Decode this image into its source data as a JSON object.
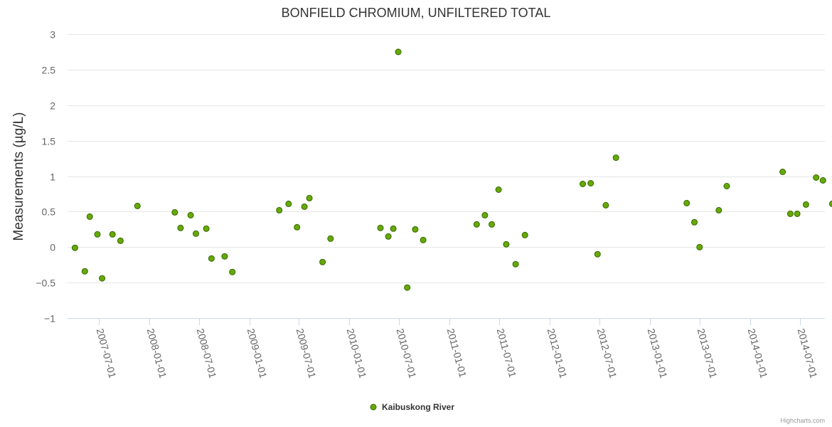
{
  "chart_data": {
    "type": "scatter",
    "title": "BONFIELD CHROMIUM, UNFILTERED TOTAL",
    "ylabel": "Measurements (µg/L)",
    "xlabel": "",
    "ylim": [
      -1,
      3
    ],
    "yticks": [
      -1,
      -0.5,
      0,
      0.5,
      1,
      1.5,
      2,
      2.5,
      3
    ],
    "ytick_labels": [
      "−1",
      "−0.5",
      "0",
      "0.5",
      "1",
      "1.5",
      "2",
      "2.5",
      "3"
    ],
    "xlim": [
      "2007-03-10",
      "2014-10-01"
    ],
    "xticks": [
      "2007-07-01",
      "2008-01-01",
      "2008-07-01",
      "2009-01-01",
      "2009-07-01",
      "2010-01-01",
      "2010-07-01",
      "2011-01-01",
      "2011-07-01",
      "2012-01-01",
      "2012-07-01",
      "2013-01-01",
      "2013-07-01",
      "2014-01-01",
      "2014-07-01"
    ],
    "grid": true,
    "legend_position": "bottom-center",
    "series": [
      {
        "name": "Kaibuskong River",
        "color": "#66aa00",
        "stroke": "#336600",
        "points": [
          {
            "x": "2007-04-06",
            "y": -0.01
          },
          {
            "x": "2007-05-12",
            "y": -0.34
          },
          {
            "x": "2007-05-30",
            "y": 0.43
          },
          {
            "x": "2007-06-27",
            "y": 0.18
          },
          {
            "x": "2007-07-14",
            "y": -0.44
          },
          {
            "x": "2007-08-21",
            "y": 0.18
          },
          {
            "x": "2007-09-19",
            "y": 0.09
          },
          {
            "x": "2007-11-20",
            "y": 0.58
          },
          {
            "x": "2008-04-04",
            "y": 0.49
          },
          {
            "x": "2008-04-25",
            "y": 0.27
          },
          {
            "x": "2008-06-01",
            "y": 0.45
          },
          {
            "x": "2008-06-20",
            "y": 0.19
          },
          {
            "x": "2008-07-28",
            "y": 0.26
          },
          {
            "x": "2008-08-16",
            "y": -0.16
          },
          {
            "x": "2008-10-03",
            "y": -0.13
          },
          {
            "x": "2008-10-31",
            "y": -0.35
          },
          {
            "x": "2009-04-20",
            "y": 0.52
          },
          {
            "x": "2009-05-24",
            "y": 0.61
          },
          {
            "x": "2009-06-24",
            "y": 0.28
          },
          {
            "x": "2009-07-21",
            "y": 0.57
          },
          {
            "x": "2009-08-08",
            "y": 0.69
          },
          {
            "x": "2009-09-25",
            "y": -0.21
          },
          {
            "x": "2009-10-24",
            "y": 0.12
          },
          {
            "x": "2010-04-24",
            "y": 0.27
          },
          {
            "x": "2010-05-23",
            "y": 0.15
          },
          {
            "x": "2010-06-10",
            "y": 0.26
          },
          {
            "x": "2010-06-28",
            "y": 2.75
          },
          {
            "x": "2010-07-31",
            "y": -0.57
          },
          {
            "x": "2010-08-29",
            "y": 0.25
          },
          {
            "x": "2010-09-27",
            "y": 0.1
          },
          {
            "x": "2011-04-10",
            "y": 0.32
          },
          {
            "x": "2011-05-10",
            "y": 0.45
          },
          {
            "x": "2011-06-04",
            "y": 0.32
          },
          {
            "x": "2011-06-29",
            "y": 0.81
          },
          {
            "x": "2011-07-27",
            "y": 0.04
          },
          {
            "x": "2011-08-30",
            "y": -0.24
          },
          {
            "x": "2011-10-03",
            "y": 0.17
          },
          {
            "x": "2012-05-01",
            "y": 0.89
          },
          {
            "x": "2012-05-30",
            "y": 0.9
          },
          {
            "x": "2012-06-24",
            "y": -0.1
          },
          {
            "x": "2012-07-24",
            "y": 0.59
          },
          {
            "x": "2012-08-30",
            "y": 1.26
          },
          {
            "x": "2013-05-15",
            "y": 0.62
          },
          {
            "x": "2013-06-12",
            "y": 0.35
          },
          {
            "x": "2013-07-01",
            "y": 0.0
          },
          {
            "x": "2013-09-09",
            "y": 0.52
          },
          {
            "x": "2013-10-08",
            "y": 0.86
          },
          {
            "x": "2014-04-30",
            "y": 1.06
          },
          {
            "x": "2014-05-28",
            "y": 0.47
          },
          {
            "x": "2014-06-22",
            "y": 0.47
          },
          {
            "x": "2014-07-24",
            "y": 0.6
          },
          {
            "x": "2014-08-30",
            "y": 0.98
          },
          {
            "x": "2014-09-24",
            "y": 0.94
          },
          {
            "x": "2014-10-28",
            "y": 0.61
          }
        ]
      }
    ]
  },
  "credits": "Highcharts.com"
}
